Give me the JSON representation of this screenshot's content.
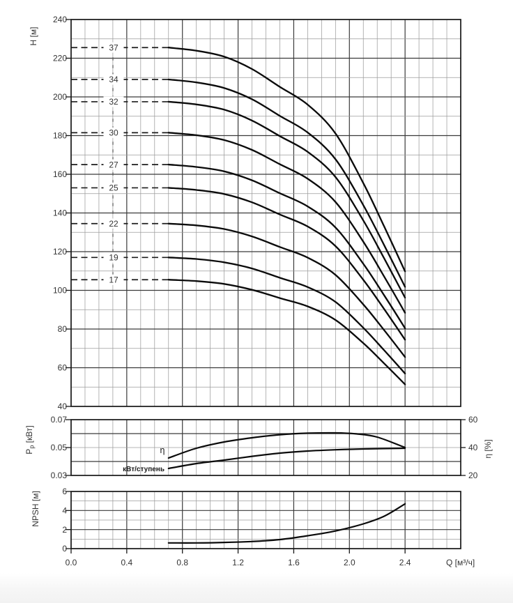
{
  "page": {
    "background": "#ffffff",
    "footer_strip_color": "#f2f2f2"
  },
  "colors": {
    "curve": "#0b0b0b",
    "grid_minor": "#9c9c9c",
    "grid_major": "#3a3a3a",
    "frame": "#161616",
    "dash_line": "#1d1d1d",
    "connector": "#555555",
    "text": "#333333"
  },
  "axes": {
    "flow": {
      "label": "Q [м³/ч]",
      "ticks": [
        "0.0",
        "0.4",
        "0.8",
        "1.2",
        "1.6",
        "2.0",
        "2.4"
      ],
      "min": 0,
      "max": 2.8,
      "minor_step": 0.1,
      "major_step": 0.4
    },
    "head": {
      "label": "H [м]",
      "ticks": [
        "240",
        "220",
        "200",
        "180",
        "160",
        "140",
        "120",
        "100",
        "80",
        "60",
        "40"
      ],
      "min": 40,
      "max": 240,
      "minor_step": 10,
      "major_step": 20
    },
    "power": {
      "label_main": "P",
      "label_sub": "p",
      "label_tail": " [кВт]",
      "ticks": [
        "0.07",
        "0.05",
        "0.03"
      ],
      "min": 0.03,
      "max": 0.07,
      "minor_step": 0.01,
      "major_step": 0.02
    },
    "efficiency": {
      "label": "η [%]",
      "ticks": [
        "60",
        "40",
        "20"
      ],
      "min": 20,
      "max": 60,
      "minor_step": 10,
      "major_step": 20
    },
    "npsh": {
      "label": "NPSH [м]",
      "ticks": [
        "6",
        "4",
        "2",
        "0"
      ],
      "min": 0,
      "max": 6,
      "minor_step": 1,
      "major_step": 2
    }
  },
  "chart_data": [
    {
      "type": "line",
      "title": "Pump head curves by number of stages",
      "xlabel": "Q [м³/ч]",
      "ylabel": "H [м]",
      "xlim": [
        0,
        2.8
      ],
      "ylim": [
        40,
        240
      ],
      "grid": "on",
      "x_major_ticks": [
        0,
        0.4,
        0.8,
        1.2,
        1.6,
        2.0,
        2.4
      ],
      "q": [
        0.7,
        0.9,
        1.1,
        1.3,
        1.5,
        1.7,
        1.9,
        2.1,
        2.25,
        2.4
      ],
      "series": [
        {
          "name": "37",
          "shutoff_head": 225.5,
          "heads": [
            225.5,
            223.9,
            220.8,
            214.4,
            205.2,
            196.0,
            181.1,
            155.4,
            133.0,
            109.8
          ]
        },
        {
          "name": "34",
          "shutoff_head": 209.0,
          "heads": [
            209.0,
            207.5,
            204.6,
            198.8,
            190.2,
            181.6,
            167.8,
            144.0,
            123.3,
            101.8
          ]
        },
        {
          "name": "32",
          "shutoff_head": 197.5,
          "heads": [
            197.5,
            196.1,
            193.4,
            187.8,
            179.7,
            171.6,
            158.6,
            136.1,
            116.5,
            96.2
          ]
        },
        {
          "name": "30",
          "shutoff_head": 181.5,
          "heads": [
            181.5,
            180.2,
            177.7,
            172.6,
            165.2,
            157.7,
            145.7,
            125.1,
            107.1,
            88.4
          ]
        },
        {
          "name": "27",
          "shutoff_head": 165.0,
          "heads": [
            165.0,
            163.8,
            161.5,
            156.9,
            150.2,
            143.4,
            132.5,
            113.7,
            97.4,
            80.4
          ]
        },
        {
          "name": "25",
          "shutoff_head": 153.0,
          "heads": [
            153.0,
            151.9,
            149.8,
            145.5,
            139.2,
            133.0,
            122.9,
            105.4,
            90.3,
            74.5
          ]
        },
        {
          "name": "22",
          "shutoff_head": 134.5,
          "heads": [
            134.5,
            133.6,
            131.7,
            127.9,
            122.4,
            116.9,
            108.0,
            92.7,
            79.4,
            65.5
          ]
        },
        {
          "name": "19",
          "shutoff_head": 117.0,
          "heads": [
            117.0,
            116.2,
            114.5,
            111.3,
            106.5,
            101.7,
            94.0,
            80.6,
            69.0,
            57.0
          ]
        },
        {
          "name": "17",
          "shutoff_head": 105.5,
          "heads": [
            105.5,
            104.8,
            103.3,
            100.3,
            96.0,
            91.7,
            84.7,
            72.7,
            62.2,
            51.4
          ]
        }
      ]
    },
    {
      "type": "line",
      "title": "Power per stage and efficiency",
      "ylabel_left": "Pp [кВт]",
      "ylabel_right": "η [%]",
      "ylim_left": [
        0.03,
        0.07
      ],
      "ylim_right": [
        20,
        60
      ],
      "grid": "on",
      "series": [
        {
          "name": "η",
          "axis": "right",
          "x": [
            0.7,
            0.9,
            1.1,
            1.3,
            1.5,
            1.7,
            1.9,
            2.05,
            2.2,
            2.4
          ],
          "values": [
            32.5,
            39.5,
            44.0,
            47.0,
            49.2,
            50.3,
            50.5,
            49.8,
            47.5,
            40.0
          ]
        },
        {
          "name": "кВт/ступень",
          "axis": "left",
          "x": [
            0.7,
            0.9,
            1.1,
            1.3,
            1.5,
            1.7,
            1.9,
            2.1,
            2.4
          ],
          "values": [
            0.035,
            0.0385,
            0.041,
            0.0437,
            0.046,
            0.0475,
            0.0484,
            0.049,
            0.0495
          ]
        }
      ]
    },
    {
      "type": "line",
      "title": "NPSH curve",
      "ylabel": "NPSH [м]",
      "ylim": [
        0,
        6
      ],
      "grid": "on",
      "x": [
        0.7,
        0.9,
        1.1,
        1.3,
        1.5,
        1.7,
        1.9,
        2.1,
        2.25,
        2.4
      ],
      "values": [
        0.6,
        0.6,
        0.65,
        0.75,
        0.95,
        1.35,
        1.85,
        2.6,
        3.4,
        4.7
      ]
    }
  ]
}
